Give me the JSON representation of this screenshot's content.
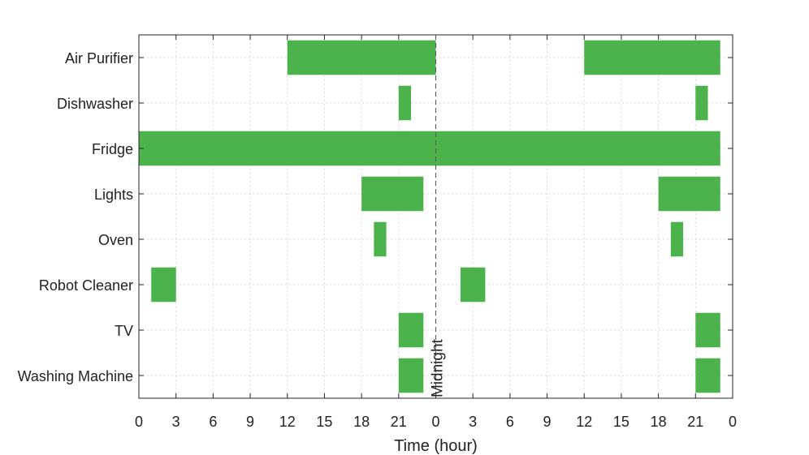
{
  "chart_data": {
    "type": "gantt",
    "title": "",
    "xlabel": "Time (hour)",
    "ylabel": "",
    "x_range_hours": [
      0,
      48
    ],
    "x_tick_labels": [
      "0",
      "3",
      "6",
      "9",
      "12",
      "15",
      "18",
      "21",
      "0",
      "3",
      "6",
      "9",
      "12",
      "15",
      "18",
      "21",
      "0"
    ],
    "grid": true,
    "bar_color": "#4cb34c",
    "annotation": {
      "label": "Midnight",
      "x": 24
    },
    "categories": [
      "Air Purifier",
      "Dishwasher",
      "Fridge",
      "Lights",
      "Oven",
      "Robot Cleaner",
      "TV",
      "Washing Machine"
    ],
    "intervals": [
      {
        "category": "Air Purifier",
        "start": 12,
        "end": 24
      },
      {
        "category": "Air Purifier",
        "start": 36,
        "end": 47
      },
      {
        "category": "Dishwasher",
        "start": 21,
        "end": 22
      },
      {
        "category": "Dishwasher",
        "start": 45,
        "end": 46
      },
      {
        "category": "Fridge",
        "start": 0,
        "end": 47
      },
      {
        "category": "Lights",
        "start": 18,
        "end": 23
      },
      {
        "category": "Lights",
        "start": 42,
        "end": 47
      },
      {
        "category": "Oven",
        "start": 19,
        "end": 20
      },
      {
        "category": "Oven",
        "start": 43,
        "end": 44
      },
      {
        "category": "Robot Cleaner",
        "start": 1,
        "end": 3
      },
      {
        "category": "Robot Cleaner",
        "start": 26,
        "end": 28
      },
      {
        "category": "TV",
        "start": 21,
        "end": 23
      },
      {
        "category": "TV",
        "start": 45,
        "end": 47
      },
      {
        "category": "Washing Machine",
        "start": 21,
        "end": 23
      },
      {
        "category": "Washing Machine",
        "start": 45,
        "end": 47
      }
    ]
  }
}
